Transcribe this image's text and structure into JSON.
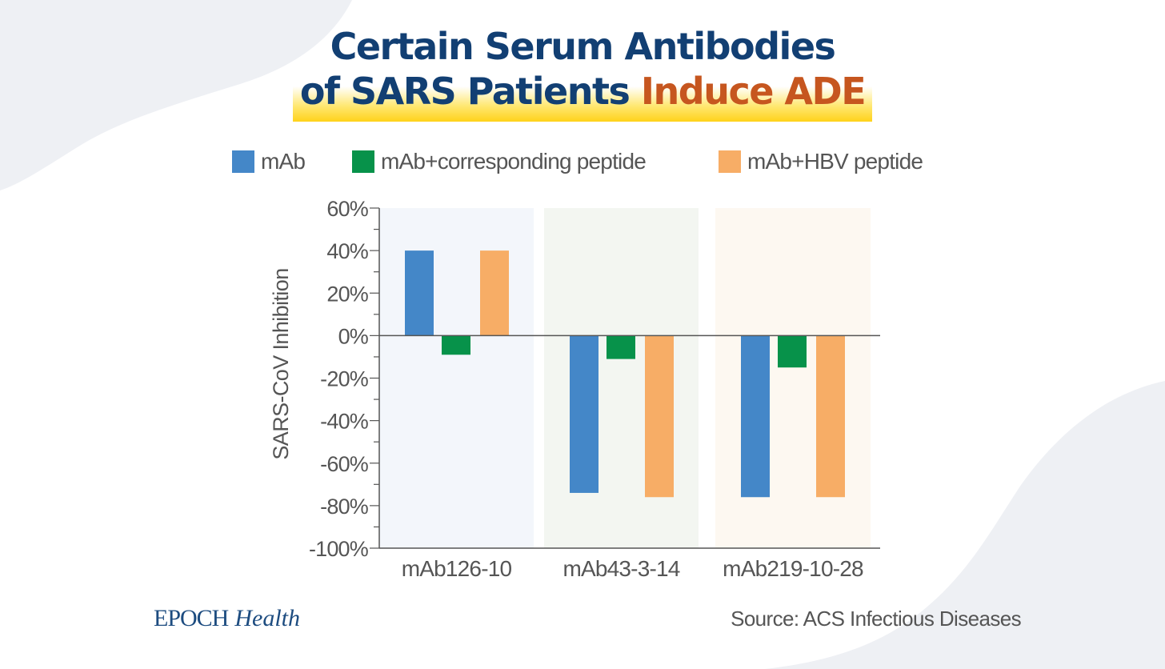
{
  "header": {
    "title_line1": "Certain Serum Antibodies",
    "title_line2_main": "of SARS Patients",
    "title_line2_accent": "Induce ADE"
  },
  "colors": {
    "navy": "#123f73",
    "accent_orange_text": "#c6561f",
    "highlight_yellow": "#ffe04a",
    "series_mab": "#4487c8",
    "series_corresponding": "#07924a",
    "series_hbv": "#f7ad66",
    "panel_1": "#f3f6fb",
    "panel_2": "#f3f6f1",
    "panel_3": "#fdf8f1"
  },
  "chart_data": {
    "type": "bar",
    "title": "Certain Serum Antibodies of SARS Patients Induce ADE",
    "xlabel": "",
    "ylabel": "SARS-CoV Inhibition",
    "ylim": [
      -100,
      60
    ],
    "y_ticks": [
      60,
      40,
      20,
      0,
      -20,
      -40,
      -60,
      -80,
      -100
    ],
    "y_tick_labels": [
      "60%",
      "40%",
      "20%",
      "0%",
      "-20%",
      "-40%",
      "-60%",
      "-80%",
      "-100%"
    ],
    "categories": [
      "mAb126-10",
      "mAb43-3-14",
      "mAb219-10-28"
    ],
    "series": [
      {
        "name": "mAb",
        "color": "#4487c8",
        "values": [
          40,
          -74,
          -76
        ]
      },
      {
        "name": "mAb+corresponding peptide",
        "color": "#07924a",
        "values": [
          -9,
          -11,
          -15
        ]
      },
      {
        "name": "mAb+HBV peptide",
        "color": "#f7ad66",
        "values": [
          40,
          -76,
          -76
        ]
      }
    ],
    "legend_position": "top",
    "grid": false
  },
  "footer": {
    "brand": "EPOCH",
    "brand_sub": "Health",
    "source": "Source: ACS Infectious Diseases"
  }
}
